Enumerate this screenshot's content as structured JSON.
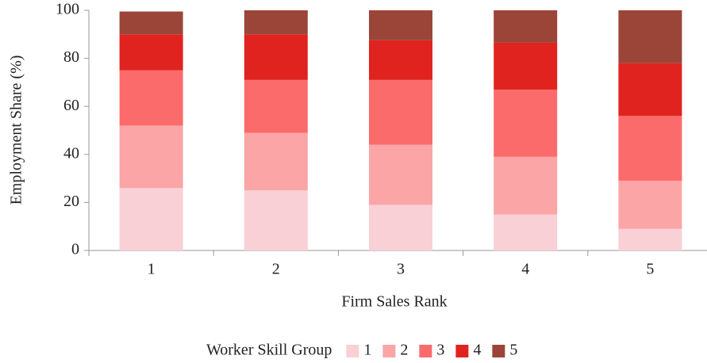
{
  "chart_data": {
    "type": "bar",
    "stacked": true,
    "x_label": "Firm Sales Rank",
    "y_label": "Employment Share (%)",
    "legend_title": "Worker Skill Group",
    "legend_position": "bottom",
    "categories": [
      "1",
      "2",
      "3",
      "4",
      "5"
    ],
    "series": [
      {
        "name": "1",
        "color": "#f8d0d6",
        "values": [
          26,
          25,
          19,
          15,
          9
        ]
      },
      {
        "name": "2",
        "color": "#fba5a6",
        "values": [
          26,
          24,
          25,
          24,
          20
        ]
      },
      {
        "name": "3",
        "color": "#fc6b6b",
        "values": [
          23,
          22,
          27,
          28,
          27
        ]
      },
      {
        "name": "4",
        "color": "#e0231f",
        "values": [
          15,
          19,
          16.5,
          19.5,
          22
        ]
      },
      {
        "name": "5",
        "color": "#9b4538",
        "values": [
          9.5,
          10,
          12.5,
          13.5,
          22
        ]
      }
    ],
    "ylim": [
      0,
      100
    ],
    "yticks": [
      0,
      20,
      40,
      60,
      80,
      100
    ]
  }
}
